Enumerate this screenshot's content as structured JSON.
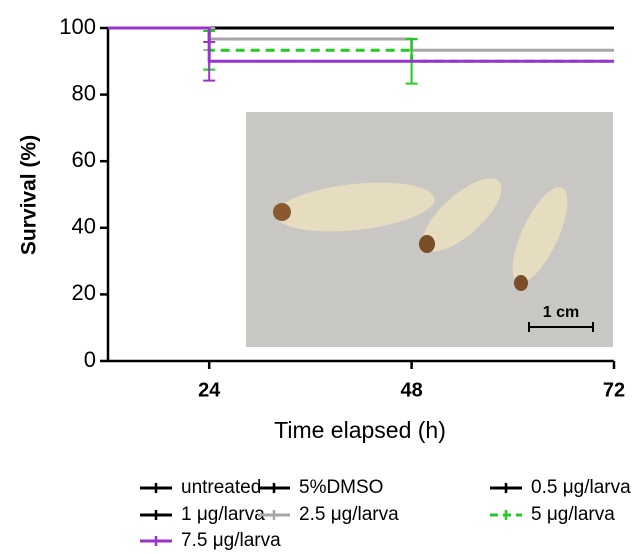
{
  "chart_data": {
    "type": "line",
    "step": true,
    "xlabel": "Time elapsed (h)",
    "ylabel": "Survival (%)",
    "x": [
      12,
      24,
      48,
      72
    ],
    "xlim": [
      12,
      72
    ],
    "xticks": [
      24,
      48,
      72
    ],
    "ylim": [
      0,
      100
    ],
    "yticks": [
      0,
      20,
      40,
      60,
      80,
      100
    ],
    "series": [
      {
        "name": "untreated",
        "color": "#000000",
        "dash": false,
        "values": [
          100,
          100,
          100,
          100
        ]
      },
      {
        "name": "5%DMSO",
        "color": "#000000",
        "dash": false,
        "values": [
          100,
          100,
          100,
          100
        ]
      },
      {
        "name": "0.5 μg/larva",
        "color": "#000000",
        "dash": false,
        "values": [
          100,
          100,
          100,
          100
        ]
      },
      {
        "name": "1 μg/larva",
        "color": "#000000",
        "dash": false,
        "values": [
          100,
          100,
          100,
          100
        ]
      },
      {
        "name": "2.5 μg/larva",
        "color": "#a6a6a6",
        "dash": false,
        "values": [
          100,
          96.7,
          93.3,
          93.3
        ],
        "errors": [
          null,
          3.3,
          3.3,
          null
        ]
      },
      {
        "name": "5 μg/larva",
        "color": "#22cc22",
        "dash": true,
        "values": [
          100,
          93.3,
          90,
          90
        ],
        "errors": [
          null,
          5.8,
          6.7,
          null
        ]
      },
      {
        "name": "7.5 μg/larva",
        "color": "#9933cc",
        "dash": false,
        "values": [
          100,
          90,
          90,
          90
        ],
        "errors": [
          null,
          5.8,
          null,
          null
        ]
      }
    ],
    "inset_scale_label": "1 cm"
  }
}
